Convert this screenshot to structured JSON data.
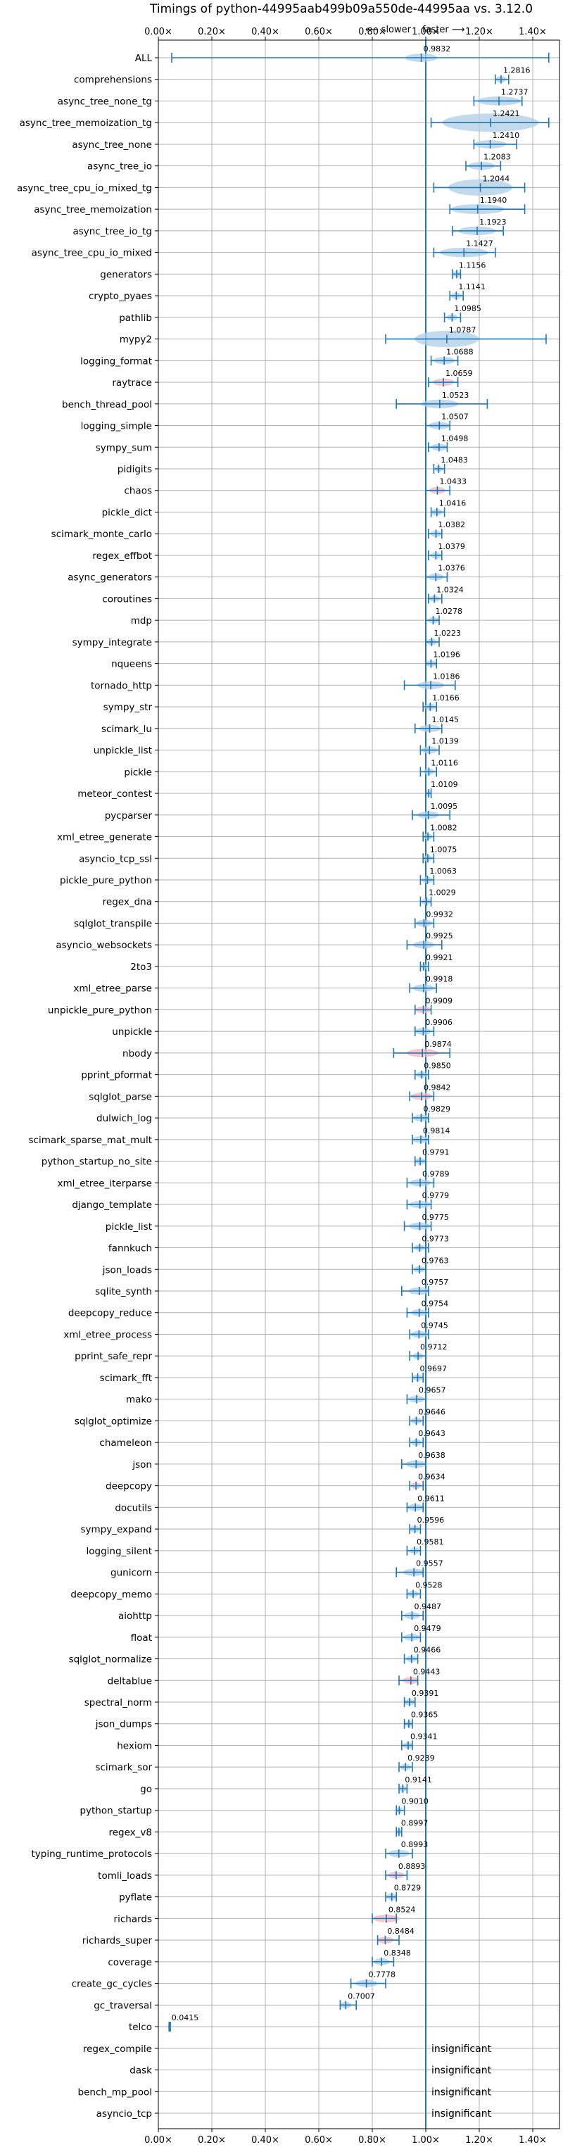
{
  "chart_data": {
    "type": "violin",
    "title": "Timings of python-44995aab499b09a550de-44995aa vs. 3.12.0",
    "direction_slower": "⟵ slower",
    "direction_faster": "faster ⟶",
    "xlim": [
      0,
      1.5
    ],
    "xticks": [
      "0.00×",
      "0.20×",
      "0.40×",
      "0.60×",
      "0.80×",
      "1.00×",
      "1.20×",
      "1.40×"
    ],
    "grid": true,
    "reference_line": 1.0,
    "colors": {
      "faster": "#1f77b4",
      "slower": "#e8888f",
      "body": "#aecde6",
      "slower_body": "#f4b6bd"
    },
    "benchmarks": [
      {
        "name": "ALL",
        "value": 0.9832,
        "label": "0.9832",
        "lo": 0.05,
        "hi": 1.46,
        "spread": 0.06,
        "regressed": false
      },
      {
        "name": "comprehensions",
        "value": 1.2816,
        "label": "1.2816",
        "lo": 1.26,
        "hi": 1.31,
        "spread": 0.02,
        "regressed": false
      },
      {
        "name": "async_tree_none_tg",
        "value": 1.2737,
        "label": "1.2737",
        "lo": 1.18,
        "hi": 1.36,
        "spread": 0.08,
        "regressed": false
      },
      {
        "name": "async_tree_memoization_tg",
        "value": 1.2421,
        "label": "1.2421",
        "lo": 1.02,
        "hi": 1.46,
        "spread": 0.18,
        "regressed": false
      },
      {
        "name": "async_tree_none",
        "value": 1.241,
        "label": "1.2410",
        "lo": 1.18,
        "hi": 1.34,
        "spread": 0.06,
        "regressed": false
      },
      {
        "name": "async_tree_io",
        "value": 1.2083,
        "label": "1.2083",
        "lo": 1.15,
        "hi": 1.28,
        "spread": 0.05,
        "regressed": false
      },
      {
        "name": "async_tree_cpu_io_mixed_tg",
        "value": 1.2044,
        "label": "1.2044",
        "lo": 1.03,
        "hi": 1.37,
        "spread": 0.12,
        "regressed": false
      },
      {
        "name": "async_tree_memoization",
        "value": 1.194,
        "label": "1.1940",
        "lo": 1.09,
        "hi": 1.37,
        "spread": 0.1,
        "regressed": false
      },
      {
        "name": "async_tree_io_tg",
        "value": 1.1923,
        "label": "1.1923",
        "lo": 1.1,
        "hi": 1.29,
        "spread": 0.07,
        "regressed": false
      },
      {
        "name": "async_tree_cpu_io_mixed",
        "value": 1.1427,
        "label": "1.1427",
        "lo": 1.03,
        "hi": 1.26,
        "spread": 0.09,
        "regressed": false
      },
      {
        "name": "generators",
        "value": 1.1156,
        "label": "1.1156",
        "lo": 1.1,
        "hi": 1.13,
        "spread": 0.015,
        "regressed": false
      },
      {
        "name": "crypto_pyaes",
        "value": 1.1141,
        "label": "1.1141",
        "lo": 1.09,
        "hi": 1.14,
        "spread": 0.02,
        "regressed": false
      },
      {
        "name": "pathlib",
        "value": 1.0985,
        "label": "1.0985",
        "lo": 1.07,
        "hi": 1.13,
        "spread": 0.02,
        "regressed": false
      },
      {
        "name": "mypy2",
        "value": 1.0787,
        "label": "1.0787",
        "lo": 0.85,
        "hi": 1.45,
        "spread": 0.12,
        "regressed": false
      },
      {
        "name": "logging_format",
        "value": 1.0688,
        "label": "1.0688",
        "lo": 1.02,
        "hi": 1.12,
        "spread": 0.04,
        "regressed": false
      },
      {
        "name": "raytrace",
        "value": 1.0659,
        "label": "1.0659",
        "lo": 1.01,
        "hi": 1.12,
        "spread": 0.04,
        "regressed": true
      },
      {
        "name": "bench_thread_pool",
        "value": 1.0523,
        "label": "1.0523",
        "lo": 0.89,
        "hi": 1.23,
        "spread": 0.07,
        "regressed": false
      },
      {
        "name": "logging_simple",
        "value": 1.0507,
        "label": "1.0507",
        "lo": 1.0,
        "hi": 1.09,
        "spread": 0.04,
        "regressed": false
      },
      {
        "name": "sympy_sum",
        "value": 1.0498,
        "label": "1.0498",
        "lo": 1.01,
        "hi": 1.08,
        "spread": 0.03,
        "regressed": false
      },
      {
        "name": "pidigits",
        "value": 1.0483,
        "label": "1.0483",
        "lo": 1.03,
        "hi": 1.07,
        "spread": 0.015,
        "regressed": false
      },
      {
        "name": "chaos",
        "value": 1.0433,
        "label": "1.0433",
        "lo": 1.0,
        "hi": 1.09,
        "spread": 0.03,
        "regressed": true
      },
      {
        "name": "pickle_dict",
        "value": 1.0416,
        "label": "1.0416",
        "lo": 1.02,
        "hi": 1.07,
        "spread": 0.02,
        "regressed": false
      },
      {
        "name": "scimark_monte_carlo",
        "value": 1.0382,
        "label": "1.0382",
        "lo": 1.01,
        "hi": 1.06,
        "spread": 0.02,
        "regressed": false
      },
      {
        "name": "regex_effbot",
        "value": 1.0379,
        "label": "1.0379",
        "lo": 1.01,
        "hi": 1.06,
        "spread": 0.02,
        "regressed": false
      },
      {
        "name": "async_generators",
        "value": 1.0376,
        "label": "1.0376",
        "lo": 1.0,
        "hi": 1.08,
        "spread": 0.03,
        "regressed": false
      },
      {
        "name": "coroutines",
        "value": 1.0324,
        "label": "1.0324",
        "lo": 1.01,
        "hi": 1.06,
        "spread": 0.02,
        "regressed": false
      },
      {
        "name": "mdp",
        "value": 1.0278,
        "label": "1.0278",
        "lo": 1.0,
        "hi": 1.05,
        "spread": 0.02,
        "regressed": false
      },
      {
        "name": "sympy_integrate",
        "value": 1.0223,
        "label": "1.0223",
        "lo": 1.0,
        "hi": 1.05,
        "spread": 0.02,
        "regressed": false
      },
      {
        "name": "nqueens",
        "value": 1.0196,
        "label": "1.0196",
        "lo": 1.0,
        "hi": 1.04,
        "spread": 0.02,
        "regressed": false
      },
      {
        "name": "tornado_http",
        "value": 1.0186,
        "label": "1.0186",
        "lo": 0.92,
        "hi": 1.11,
        "spread": 0.05,
        "regressed": false
      },
      {
        "name": "sympy_str",
        "value": 1.0166,
        "label": "1.0166",
        "lo": 0.99,
        "hi": 1.04,
        "spread": 0.02,
        "regressed": false
      },
      {
        "name": "scimark_lu",
        "value": 1.0145,
        "label": "1.0145",
        "lo": 0.96,
        "hi": 1.06,
        "spread": 0.04,
        "regressed": false
      },
      {
        "name": "unpickle_list",
        "value": 1.0139,
        "label": "1.0139",
        "lo": 0.98,
        "hi": 1.05,
        "spread": 0.03,
        "regressed": false
      },
      {
        "name": "pickle",
        "value": 1.0116,
        "label": "1.0116",
        "lo": 0.98,
        "hi": 1.04,
        "spread": 0.02,
        "regressed": false
      },
      {
        "name": "meteor_contest",
        "value": 1.0109,
        "label": "1.0109",
        "lo": 1.0,
        "hi": 1.02,
        "spread": 0.01,
        "regressed": false
      },
      {
        "name": "pycparser",
        "value": 1.0095,
        "label": "1.0095",
        "lo": 0.95,
        "hi": 1.09,
        "spread": 0.04,
        "regressed": false
      },
      {
        "name": "xml_etree_generate",
        "value": 1.0082,
        "label": "1.0082",
        "lo": 0.99,
        "hi": 1.03,
        "spread": 0.015,
        "regressed": false
      },
      {
        "name": "asyncio_tcp_ssl",
        "value": 1.0075,
        "label": "1.0075",
        "lo": 0.99,
        "hi": 1.03,
        "spread": 0.015,
        "regressed": false
      },
      {
        "name": "pickle_pure_python",
        "value": 1.0063,
        "label": "1.0063",
        "lo": 0.98,
        "hi": 1.03,
        "spread": 0.02,
        "regressed": false
      },
      {
        "name": "regex_dna",
        "value": 1.0029,
        "label": "1.0029",
        "lo": 0.98,
        "hi": 1.02,
        "spread": 0.02,
        "regressed": false
      },
      {
        "name": "sqlglot_transpile",
        "value": 0.9932,
        "label": "0.9932",
        "lo": 0.96,
        "hi": 1.03,
        "spread": 0.03,
        "regressed": false
      },
      {
        "name": "asyncio_websockets",
        "value": 0.9925,
        "label": "0.9925",
        "lo": 0.93,
        "hi": 1.06,
        "spread": 0.04,
        "regressed": false
      },
      {
        "name": "2to3",
        "value": 0.9921,
        "label": "0.9921",
        "lo": 0.98,
        "hi": 1.01,
        "spread": 0.012,
        "regressed": false
      },
      {
        "name": "xml_etree_parse",
        "value": 0.9918,
        "label": "0.9918",
        "lo": 0.94,
        "hi": 1.04,
        "spread": 0.04,
        "regressed": false
      },
      {
        "name": "unpickle_pure_python",
        "value": 0.9909,
        "label": "0.9909",
        "lo": 0.96,
        "hi": 1.02,
        "spread": 0.03,
        "regressed": true
      },
      {
        "name": "unpickle",
        "value": 0.9906,
        "label": "0.9906",
        "lo": 0.96,
        "hi": 1.03,
        "spread": 0.03,
        "regressed": false
      },
      {
        "name": "nbody",
        "value": 0.9874,
        "label": "0.9874",
        "lo": 0.88,
        "hi": 1.09,
        "spread": 0.06,
        "regressed": true
      },
      {
        "name": "pprint_pformat",
        "value": 0.985,
        "label": "0.9850",
        "lo": 0.96,
        "hi": 1.01,
        "spread": 0.02,
        "regressed": false
      },
      {
        "name": "sqlglot_parse",
        "value": 0.9842,
        "label": "0.9842",
        "lo": 0.94,
        "hi": 1.03,
        "spread": 0.04,
        "regressed": true
      },
      {
        "name": "dulwich_log",
        "value": 0.9829,
        "label": "0.9829",
        "lo": 0.95,
        "hi": 1.01,
        "spread": 0.03,
        "regressed": false
      },
      {
        "name": "scimark_sparse_mat_mult",
        "value": 0.9814,
        "label": "0.9814",
        "lo": 0.95,
        "hi": 1.01,
        "spread": 0.03,
        "regressed": false
      },
      {
        "name": "python_startup_no_site",
        "value": 0.9791,
        "label": "0.9791",
        "lo": 0.96,
        "hi": 1.0,
        "spread": 0.02,
        "regressed": false
      },
      {
        "name": "xml_etree_iterparse",
        "value": 0.9789,
        "label": "0.9789",
        "lo": 0.93,
        "hi": 1.03,
        "spread": 0.04,
        "regressed": false
      },
      {
        "name": "django_template",
        "value": 0.9779,
        "label": "0.9779",
        "lo": 0.93,
        "hi": 1.02,
        "spread": 0.04,
        "regressed": false
      },
      {
        "name": "pickle_list",
        "value": 0.9775,
        "label": "0.9775",
        "lo": 0.92,
        "hi": 1.02,
        "spread": 0.04,
        "regressed": false
      },
      {
        "name": "fannkuch",
        "value": 0.9773,
        "label": "0.9773",
        "lo": 0.95,
        "hi": 1.01,
        "spread": 0.02,
        "regressed": false
      },
      {
        "name": "json_loads",
        "value": 0.9763,
        "label": "0.9763",
        "lo": 0.95,
        "hi": 1.0,
        "spread": 0.02,
        "regressed": false
      },
      {
        "name": "sqlite_synth",
        "value": 0.9757,
        "label": "0.9757",
        "lo": 0.91,
        "hi": 1.01,
        "spread": 0.04,
        "regressed": false
      },
      {
        "name": "deepcopy_reduce",
        "value": 0.9754,
        "label": "0.9754",
        "lo": 0.93,
        "hi": 1.01,
        "spread": 0.03,
        "regressed": false
      },
      {
        "name": "xml_etree_process",
        "value": 0.9745,
        "label": "0.9745",
        "lo": 0.94,
        "hi": 1.01,
        "spread": 0.03,
        "regressed": false
      },
      {
        "name": "pprint_safe_repr",
        "value": 0.9712,
        "label": "0.9712",
        "lo": 0.94,
        "hi": 1.0,
        "spread": 0.02,
        "regressed": false
      },
      {
        "name": "scimark_fft",
        "value": 0.9697,
        "label": "0.9697",
        "lo": 0.95,
        "hi": 0.99,
        "spread": 0.02,
        "regressed": false
      },
      {
        "name": "mako",
        "value": 0.9657,
        "label": "0.9657",
        "lo": 0.93,
        "hi": 1.0,
        "spread": 0.03,
        "regressed": false
      },
      {
        "name": "sqlglot_optimize",
        "value": 0.9646,
        "label": "0.9646",
        "lo": 0.94,
        "hi": 0.99,
        "spread": 0.02,
        "regressed": false
      },
      {
        "name": "chameleon",
        "value": 0.9643,
        "label": "0.9643",
        "lo": 0.94,
        "hi": 0.99,
        "spread": 0.02,
        "regressed": false
      },
      {
        "name": "json",
        "value": 0.9638,
        "label": "0.9638",
        "lo": 0.91,
        "hi": 1.0,
        "spread": 0.04,
        "regressed": false
      },
      {
        "name": "deepcopy",
        "value": 0.9634,
        "label": "0.9634",
        "lo": 0.94,
        "hi": 0.99,
        "spread": 0.02,
        "regressed": true
      },
      {
        "name": "docutils",
        "value": 0.9611,
        "label": "0.9611",
        "lo": 0.93,
        "hi": 0.99,
        "spread": 0.03,
        "regressed": false
      },
      {
        "name": "sympy_expand",
        "value": 0.9596,
        "label": "0.9596",
        "lo": 0.94,
        "hi": 0.98,
        "spread": 0.02,
        "regressed": false
      },
      {
        "name": "logging_silent",
        "value": 0.9581,
        "label": "0.9581",
        "lo": 0.93,
        "hi": 0.98,
        "spread": 0.02,
        "regressed": false
      },
      {
        "name": "gunicorn",
        "value": 0.9557,
        "label": "0.9557",
        "lo": 0.89,
        "hi": 0.99,
        "spread": 0.04,
        "regressed": false
      },
      {
        "name": "deepcopy_memo",
        "value": 0.9528,
        "label": "0.9528",
        "lo": 0.93,
        "hi": 0.98,
        "spread": 0.02,
        "regressed": false
      },
      {
        "name": "aiohttp",
        "value": 0.9487,
        "label": "0.9487",
        "lo": 0.91,
        "hi": 0.99,
        "spread": 0.03,
        "regressed": false
      },
      {
        "name": "float",
        "value": 0.9479,
        "label": "0.9479",
        "lo": 0.91,
        "hi": 0.98,
        "spread": 0.03,
        "regressed": false
      },
      {
        "name": "sqlglot_normalize",
        "value": 0.9466,
        "label": "0.9466",
        "lo": 0.92,
        "hi": 0.97,
        "spread": 0.02,
        "regressed": false
      },
      {
        "name": "deltablue",
        "value": 0.9443,
        "label": "0.9443",
        "lo": 0.9,
        "hi": 0.97,
        "spread": 0.03,
        "regressed": true
      },
      {
        "name": "spectral_norm",
        "value": 0.9391,
        "label": "0.9391",
        "lo": 0.92,
        "hi": 0.96,
        "spread": 0.02,
        "regressed": false
      },
      {
        "name": "json_dumps",
        "value": 0.9365,
        "label": "0.9365",
        "lo": 0.92,
        "hi": 0.95,
        "spread": 0.015,
        "regressed": false
      },
      {
        "name": "hexiom",
        "value": 0.9341,
        "label": "0.9341",
        "lo": 0.91,
        "hi": 0.95,
        "spread": 0.02,
        "regressed": false
      },
      {
        "name": "scimark_sor",
        "value": 0.9239,
        "label": "0.9239",
        "lo": 0.9,
        "hi": 0.95,
        "spread": 0.02,
        "regressed": false
      },
      {
        "name": "go",
        "value": 0.9141,
        "label": "0.9141",
        "lo": 0.9,
        "hi": 0.93,
        "spread": 0.015,
        "regressed": false
      },
      {
        "name": "python_startup",
        "value": 0.901,
        "label": "0.9010",
        "lo": 0.89,
        "hi": 0.92,
        "spread": 0.012,
        "regressed": false
      },
      {
        "name": "regex_v8",
        "value": 0.8997,
        "label": "0.8997",
        "lo": 0.89,
        "hi": 0.91,
        "spread": 0.01,
        "regressed": false
      },
      {
        "name": "typing_runtime_protocols",
        "value": 0.8993,
        "label": "0.8993",
        "lo": 0.85,
        "hi": 0.95,
        "spread": 0.04,
        "regressed": false
      },
      {
        "name": "tomli_loads",
        "value": 0.8893,
        "label": "0.8893",
        "lo": 0.85,
        "hi": 0.93,
        "spread": 0.03,
        "regressed": true
      },
      {
        "name": "pyflate",
        "value": 0.8729,
        "label": "0.8729",
        "lo": 0.85,
        "hi": 0.89,
        "spread": 0.02,
        "regressed": false
      },
      {
        "name": "richards",
        "value": 0.8524,
        "label": "0.8524",
        "lo": 0.8,
        "hi": 0.89,
        "spread": 0.05,
        "regressed": true
      },
      {
        "name": "richards_super",
        "value": 0.8484,
        "label": "0.8484",
        "lo": 0.82,
        "hi": 0.9,
        "spread": 0.03,
        "regressed": true
      },
      {
        "name": "coverage",
        "value": 0.8348,
        "label": "0.8348",
        "lo": 0.8,
        "hi": 0.88,
        "spread": 0.03,
        "regressed": false
      },
      {
        "name": "create_gc_cycles",
        "value": 0.7778,
        "label": "0.7778",
        "lo": 0.72,
        "hi": 0.85,
        "spread": 0.04,
        "regressed": false
      },
      {
        "name": "gc_traversal",
        "value": 0.7007,
        "label": "0.7007",
        "lo": 0.68,
        "hi": 0.74,
        "spread": 0.02,
        "regressed": false
      },
      {
        "name": "telco",
        "value": 0.0415,
        "label": "0.0415",
        "lo": 0.04,
        "hi": 0.045,
        "spread": 0.002,
        "regressed": false
      },
      {
        "name": "regex_compile",
        "value": null,
        "label": "insignificant",
        "regressed": false
      },
      {
        "name": "dask",
        "value": null,
        "label": "insignificant",
        "regressed": false
      },
      {
        "name": "bench_mp_pool",
        "value": null,
        "label": "insignificant",
        "regressed": false
      },
      {
        "name": "asyncio_tcp",
        "value": null,
        "label": "insignificant",
        "regressed": false
      }
    ]
  }
}
